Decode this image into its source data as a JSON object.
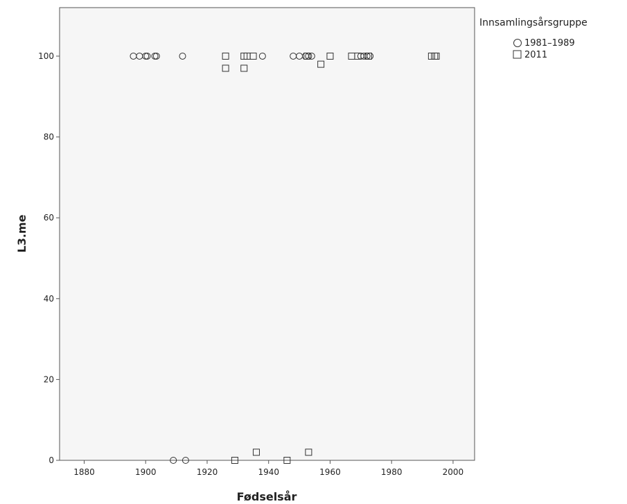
{
  "chart_data": {
    "type": "scatter",
    "title": "",
    "xlabel": "Fødselsår",
    "ylabel": "L3.me",
    "xlim": [
      1872,
      2007
    ],
    "ylim": [
      0,
      112
    ],
    "xticks": [
      1880,
      1900,
      1920,
      1940,
      1960,
      1980,
      2000
    ],
    "yticks": [
      0,
      20,
      40,
      60,
      80,
      100
    ],
    "grid": false,
    "legend": {
      "title": "Innsamlingsårsgruppe",
      "position": "right-top"
    },
    "colors": {
      "plot_background": "#f6f6f6",
      "marker_stroke": "#333333",
      "axis": "#555555"
    },
    "series": [
      {
        "name": "1981–1989",
        "marker": "circle",
        "points": [
          [
            1896,
            100
          ],
          [
            1898,
            100
          ],
          [
            1900,
            100
          ],
          [
            1900.5,
            100
          ],
          [
            1903,
            100
          ],
          [
            1903.5,
            100
          ],
          [
            1912,
            100
          ],
          [
            1938,
            100
          ],
          [
            1948,
            100
          ],
          [
            1950,
            100
          ],
          [
            1952,
            100
          ],
          [
            1953,
            100
          ],
          [
            1954,
            100
          ],
          [
            1970,
            100
          ],
          [
            1971,
            100
          ],
          [
            1972,
            100
          ],
          [
            1973,
            100
          ],
          [
            1909,
            0
          ],
          [
            1913,
            0
          ]
        ]
      },
      {
        "name": "2011",
        "marker": "square",
        "points": [
          [
            1926,
            100
          ],
          [
            1932,
            100
          ],
          [
            1933,
            100
          ],
          [
            1935,
            100
          ],
          [
            1952.5,
            100
          ],
          [
            1960,
            100
          ],
          [
            1967,
            100
          ],
          [
            1969,
            100
          ],
          [
            1972.5,
            100
          ],
          [
            1993,
            100
          ],
          [
            1994,
            100
          ],
          [
            1994.5,
            100
          ],
          [
            1926,
            97
          ],
          [
            1932,
            97
          ],
          [
            1957,
            98
          ],
          [
            1929,
            0
          ],
          [
            1946,
            0
          ],
          [
            1936,
            2
          ],
          [
            1953,
            2
          ]
        ]
      }
    ]
  }
}
